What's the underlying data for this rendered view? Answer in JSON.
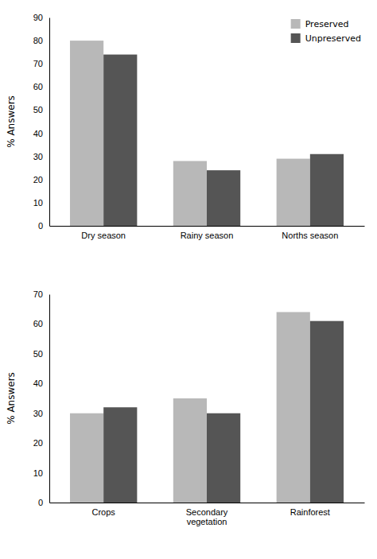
{
  "chart_data": [
    {
      "type": "bar",
      "categories": [
        "Dry season",
        "Rainy season",
        "Norths season"
      ],
      "series": [
        {
          "name": "Preserved",
          "color": "#b8b8b8",
          "values": [
            80,
            28,
            29
          ]
        },
        {
          "name": "Unpreserved",
          "color": "#555555",
          "values": [
            74,
            24,
            31
          ]
        }
      ],
      "ylim": [
        0,
        90
      ],
      "yticks": [
        0,
        10,
        20,
        30,
        40,
        50,
        60,
        70,
        80,
        90
      ],
      "ylabel": "% Answers",
      "legend": "upper-right"
    },
    {
      "type": "bar",
      "categories": [
        "Crops",
        "Secondary\nvegetation",
        "Rainforest"
      ],
      "series": [
        {
          "color": "#b8b8b8",
          "values": [
            30,
            35,
            64
          ]
        },
        {
          "color": "#555555",
          "values": [
            32,
            30,
            61
          ]
        }
      ],
      "ylim": [
        0,
        70
      ],
      "yticks": [
        0,
        10,
        20,
        30,
        40,
        50,
        60,
        70
      ],
      "ylabel": "% Answers"
    }
  ]
}
